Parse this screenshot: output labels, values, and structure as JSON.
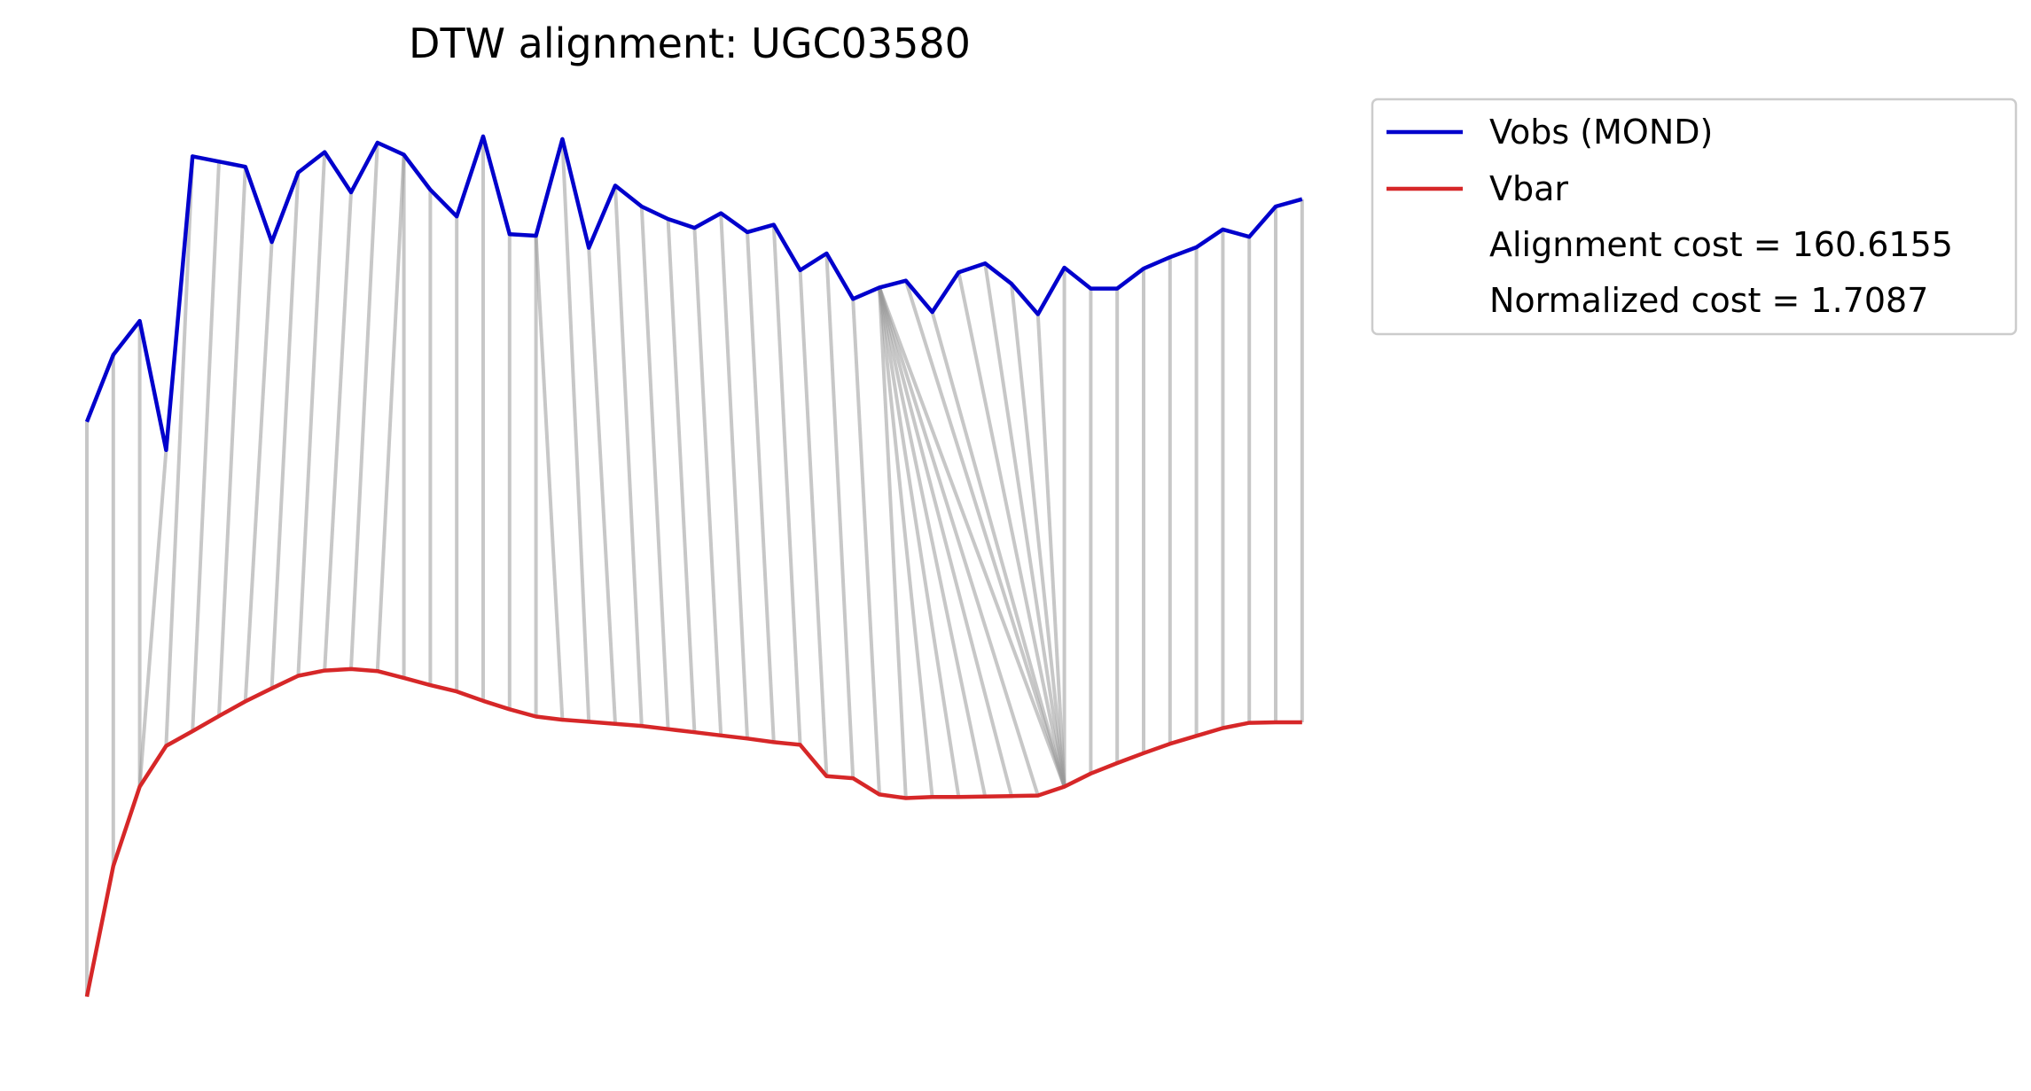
{
  "chart_data": {
    "type": "line",
    "title": "DTW alignment: UGC03580",
    "xlabel": "",
    "ylabel": "",
    "axes_visible": false,
    "grid": false,
    "legend_position": "outside-upper-right",
    "series": [
      {
        "name": "Vobs (MOND)",
        "color": "#0000cc",
        "values": [
          3.6,
          4.88,
          5.53,
          3.06,
          8.68,
          8.58,
          8.48,
          7.04,
          8.37,
          8.76,
          7.99,
          8.94,
          8.71,
          8.04,
          7.53,
          9.06,
          7.19,
          7.16,
          9.01,
          6.93,
          8.12,
          7.72,
          7.48,
          7.31,
          7.59,
          7.23,
          7.37,
          6.5,
          6.82,
          5.95,
          6.17,
          6.3,
          5.7,
          6.46,
          6.63,
          6.24,
          5.66,
          6.55,
          6.15,
          6.15,
          6.53,
          6.75,
          6.94,
          7.28,
          7.14,
          7.72,
          7.86
        ]
      },
      {
        "name": "Vbar",
        "color": "#d62728",
        "values": [
          -7.4,
          -4.9,
          -3.38,
          -2.6,
          -2.32,
          -2.03,
          -1.75,
          -1.5,
          -1.26,
          -1.16,
          -1.13,
          -1.17,
          -1.3,
          -1.44,
          -1.56,
          -1.74,
          -1.9,
          -2.04,
          -2.1,
          -2.14,
          -2.18,
          -2.22,
          -2.28,
          -2.34,
          -2.4,
          -2.46,
          -2.53,
          -2.58,
          -3.18,
          -3.22,
          -3.53,
          -3.6,
          -3.58,
          -3.58,
          -3.57,
          -3.56,
          -3.55,
          -3.38,
          -3.13,
          -2.93,
          -2.74,
          -2.56,
          -2.41,
          -2.26,
          -2.16,
          -2.15,
          -2.15
        ]
      }
    ],
    "alignment_path": [
      [
        0,
        0
      ],
      [
        1,
        1
      ],
      [
        2,
        2
      ],
      [
        3,
        2
      ],
      [
        4,
        3
      ],
      [
        5,
        4
      ],
      [
        6,
        5
      ],
      [
        7,
        6
      ],
      [
        8,
        7
      ],
      [
        9,
        8
      ],
      [
        10,
        9
      ],
      [
        11,
        10
      ],
      [
        12,
        11
      ],
      [
        12,
        12
      ],
      [
        13,
        13
      ],
      [
        14,
        14
      ],
      [
        15,
        15
      ],
      [
        16,
        16
      ],
      [
        17,
        17
      ],
      [
        17,
        18
      ],
      [
        18,
        19
      ],
      [
        19,
        20
      ],
      [
        20,
        21
      ],
      [
        21,
        22
      ],
      [
        22,
        23
      ],
      [
        23,
        24
      ],
      [
        24,
        25
      ],
      [
        25,
        26
      ],
      [
        26,
        27
      ],
      [
        27,
        28
      ],
      [
        28,
        29
      ],
      [
        29,
        30
      ],
      [
        30,
        31
      ],
      [
        30,
        32
      ],
      [
        30,
        33
      ],
      [
        30,
        34
      ],
      [
        30,
        35
      ],
      [
        30,
        36
      ],
      [
        30,
        37
      ],
      [
        31,
        37
      ],
      [
        32,
        37
      ],
      [
        33,
        37
      ],
      [
        34,
        37
      ],
      [
        35,
        37
      ],
      [
        36,
        37
      ],
      [
        37,
        37
      ],
      [
        38,
        38
      ],
      [
        39,
        39
      ],
      [
        40,
        40
      ],
      [
        41,
        41
      ],
      [
        42,
        42
      ],
      [
        43,
        43
      ],
      [
        44,
        44
      ],
      [
        45,
        45
      ],
      [
        46,
        46
      ]
    ],
    "legend": {
      "entries": [
        {
          "label": "Vobs (MOND)",
          "color": "#0000cc"
        },
        {
          "label": "Vbar",
          "color": "#d62728"
        }
      ],
      "extra_lines": [
        "Alignment cost = 160.6155",
        "Normalized cost = 1.7087"
      ]
    }
  }
}
